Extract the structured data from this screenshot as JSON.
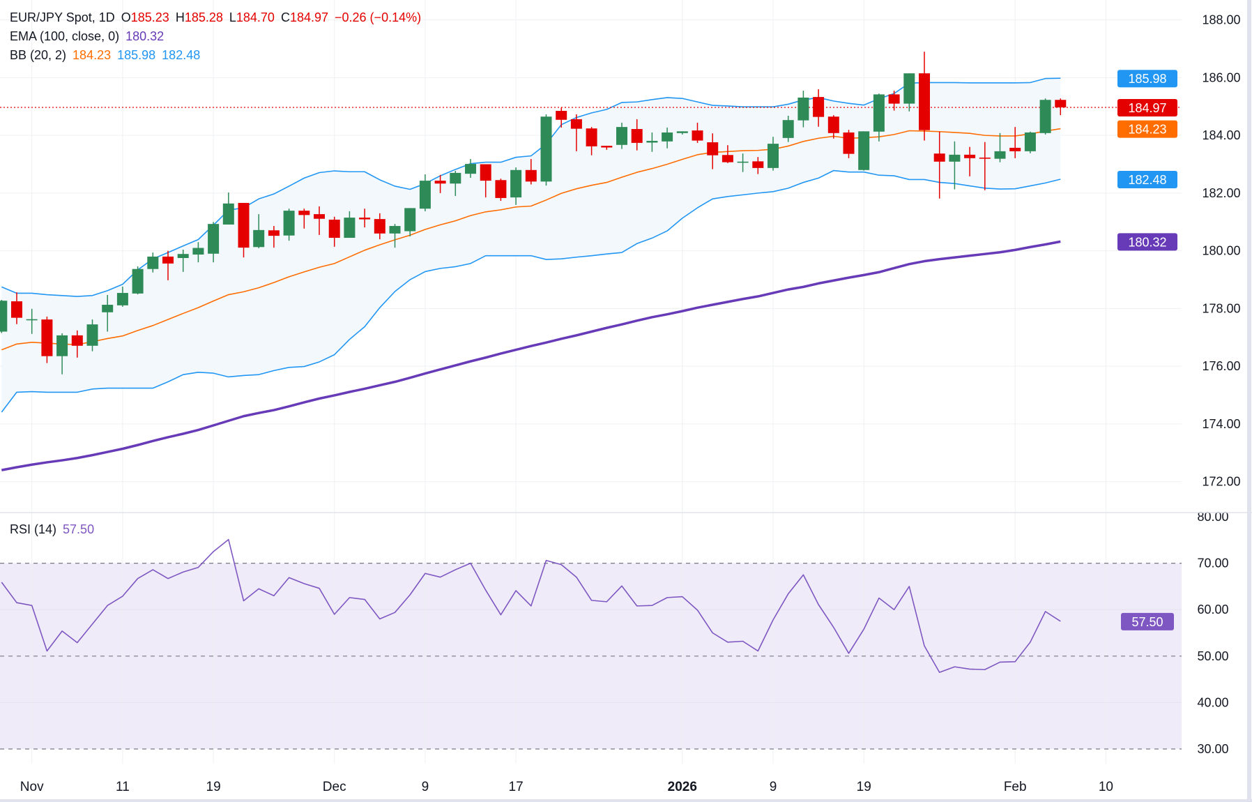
{
  "legend": {
    "symbol": "EUR/JPY Spot, 1D",
    "o_label": "O",
    "o": "185.23",
    "h_label": "H",
    "h": "185.28",
    "l_label": "L",
    "l": "184.70",
    "c_label": "C",
    "c": "184.97",
    "change": "−0.26 (−0.14%)",
    "ema_label": "EMA (100, close, 0)",
    "ema_value": "180.32",
    "bb_label": "BB (20, 2)",
    "bb_basis": "184.23",
    "bb_upper": "185.98",
    "bb_lower": "182.48",
    "rsi_label": "RSI (14)",
    "rsi_value": "57.50"
  },
  "colors": {
    "up": "#2e8b57",
    "down": "#e50000",
    "bb_upper_lower": "#2196f3",
    "bb_basis": "#ff6d00",
    "bb_fill": "#f3f8fd",
    "ema": "#673ab7",
    "rsi": "#7e57c2",
    "rsi_band": "#efebf8",
    "last_price": "#e50000"
  },
  "chart_data": [
    {
      "type": "candlestick",
      "title": "EUR/JPY Spot, 1D",
      "ylim": [
        171.5,
        188.7
      ],
      "y_tick_labels": [
        "188.00",
        "186.00",
        "184.00",
        "182.00",
        "180.00",
        "178.00",
        "176.00",
        "174.00",
        "172.00"
      ],
      "x_ticks": [
        {
          "label": "Nov",
          "candle": 2
        },
        {
          "label": "11",
          "candle": 8
        },
        {
          "label": "19",
          "candle": 14
        },
        {
          "label": "Dec",
          "candle": 22
        },
        {
          "label": "9",
          "candle": 28
        },
        {
          "label": "17",
          "candle": 34
        },
        {
          "label": "2026",
          "candle": 45,
          "bold": true
        },
        {
          "label": "9",
          "candle": 51
        },
        {
          "label": "19",
          "candle": 57
        },
        {
          "label": "Feb",
          "candle": 67
        },
        {
          "label": "10",
          "candle": 73
        }
      ],
      "grid": true,
      "candles_ohlc": [
        [
          177.2,
          178.3,
          177.15,
          178.27
        ],
        [
          178.25,
          178.56,
          177.46,
          177.68
        ],
        [
          177.62,
          177.99,
          177.12,
          177.63
        ],
        [
          177.62,
          177.72,
          176.11,
          176.35
        ],
        [
          176.35,
          177.14,
          175.72,
          177.07
        ],
        [
          177.07,
          177.24,
          176.3,
          176.71
        ],
        [
          176.71,
          177.62,
          176.52,
          177.45
        ],
        [
          177.87,
          178.47,
          177.2,
          178.13
        ],
        [
          178.11,
          178.76,
          178.06,
          178.54
        ],
        [
          178.52,
          179.46,
          178.49,
          179.37
        ],
        [
          179.37,
          179.94,
          179.25,
          179.8
        ],
        [
          179.8,
          180.0,
          178.98,
          179.56
        ],
        [
          179.75,
          180.04,
          179.27,
          179.89
        ],
        [
          179.87,
          180.3,
          179.6,
          180.1
        ],
        [
          179.9,
          181.0,
          179.6,
          180.93
        ],
        [
          180.91,
          182.02,
          180.91,
          181.64
        ],
        [
          181.66,
          181.66,
          179.77,
          180.11
        ],
        [
          180.13,
          181.27,
          180.09,
          180.72
        ],
        [
          180.71,
          180.86,
          180.11,
          180.52
        ],
        [
          180.53,
          181.46,
          180.35,
          181.39
        ],
        [
          181.39,
          181.46,
          180.77,
          181.24
        ],
        [
          181.27,
          181.54,
          180.55,
          181.11
        ],
        [
          181.08,
          181.18,
          180.14,
          180.45
        ],
        [
          180.45,
          181.37,
          180.45,
          181.15
        ],
        [
          181.15,
          181.46,
          180.81,
          181.09
        ],
        [
          181.1,
          181.3,
          180.4,
          180.6
        ],
        [
          180.6,
          180.93,
          180.11,
          180.86
        ],
        [
          180.68,
          181.48,
          180.5,
          181.48
        ],
        [
          181.46,
          182.65,
          181.37,
          182.43
        ],
        [
          182.43,
          182.63,
          182.0,
          182.33
        ],
        [
          182.33,
          182.77,
          181.9,
          182.7
        ],
        [
          182.67,
          183.18,
          182.53,
          183.01
        ],
        [
          183.0,
          183.0,
          181.85,
          182.43
        ],
        [
          182.45,
          182.5,
          181.73,
          181.83
        ],
        [
          181.85,
          182.89,
          181.59,
          182.8
        ],
        [
          182.8,
          183.18,
          182.3,
          182.4
        ],
        [
          182.4,
          184.73,
          182.26,
          184.65
        ],
        [
          184.85,
          184.96,
          184.27,
          184.54
        ],
        [
          184.56,
          184.73,
          183.45,
          184.23
        ],
        [
          184.24,
          184.29,
          183.31,
          183.62
        ],
        [
          183.64,
          183.64,
          183.5,
          183.58
        ],
        [
          183.67,
          184.44,
          183.53,
          184.29
        ],
        [
          184.22,
          184.56,
          183.48,
          183.74
        ],
        [
          183.75,
          184.1,
          183.43,
          183.81
        ],
        [
          183.79,
          184.27,
          183.55,
          184.1
        ],
        [
          184.08,
          184.14,
          184.03,
          184.14
        ],
        [
          184.17,
          184.44,
          183.74,
          183.82
        ],
        [
          183.76,
          184.07,
          182.83,
          183.31
        ],
        [
          183.32,
          183.66,
          183.04,
          183.07
        ],
        [
          183.07,
          183.37,
          182.73,
          183.09
        ],
        [
          183.1,
          183.25,
          182.66,
          182.87
        ],
        [
          182.87,
          183.95,
          182.78,
          183.71
        ],
        [
          183.91,
          184.68,
          183.77,
          184.53
        ],
        [
          184.52,
          185.55,
          184.28,
          185.31
        ],
        [
          185.33,
          185.6,
          184.3,
          184.64
        ],
        [
          184.65,
          184.7,
          183.89,
          184.08
        ],
        [
          184.1,
          184.19,
          183.21,
          183.36
        ],
        [
          182.8,
          184.14,
          182.78,
          184.14
        ],
        [
          184.13,
          185.45,
          183.79,
          185.42
        ],
        [
          185.42,
          185.55,
          184.86,
          185.1
        ],
        [
          185.1,
          186.15,
          184.83,
          186.15
        ],
        [
          186.15,
          186.9,
          183.82,
          184.18
        ],
        [
          183.37,
          184.13,
          181.81,
          183.09
        ],
        [
          183.09,
          183.79,
          182.13,
          183.33
        ],
        [
          183.33,
          183.6,
          182.58,
          183.21
        ],
        [
          183.23,
          183.77,
          182.1,
          183.22
        ],
        [
          183.19,
          184.08,
          183.07,
          183.45
        ],
        [
          183.57,
          184.29,
          183.21,
          183.45
        ],
        [
          183.45,
          184.13,
          183.38,
          184.1
        ],
        [
          184.08,
          185.28,
          184.03,
          185.23
        ],
        [
          185.23,
          185.28,
          184.7,
          184.97
        ]
      ],
      "bb_upper": [
        178.75,
        178.53,
        178.53,
        178.48,
        178.45,
        178.42,
        178.45,
        178.62,
        178.84,
        179.34,
        179.72,
        179.94,
        180.17,
        180.39,
        180.89,
        181.41,
        181.49,
        181.8,
        181.97,
        182.24,
        182.52,
        182.71,
        182.77,
        182.74,
        182.74,
        182.46,
        182.24,
        182.13,
        182.33,
        182.6,
        182.82,
        183.02,
        183.07,
        183.07,
        183.24,
        183.29,
        183.7,
        184.37,
        184.62,
        184.78,
        184.9,
        185.14,
        185.16,
        185.24,
        185.31,
        185.28,
        185.16,
        185.04,
        185.02,
        184.99,
        184.99,
        184.99,
        185.08,
        185.23,
        185.31,
        185.19,
        185.11,
        185.05,
        185.27,
        185.45,
        185.81,
        185.83,
        185.83,
        185.83,
        185.82,
        185.82,
        185.82,
        185.82,
        185.83,
        185.97,
        185.98
      ],
      "bb_basis": [
        176.57,
        176.77,
        176.83,
        176.8,
        176.77,
        176.75,
        176.85,
        176.96,
        177.05,
        177.24,
        177.41,
        177.62,
        177.83,
        178.03,
        178.26,
        178.48,
        178.58,
        178.72,
        178.9,
        179.1,
        179.27,
        179.43,
        179.56,
        179.79,
        180.02,
        180.21,
        180.38,
        180.54,
        180.74,
        180.9,
        181.04,
        181.22,
        181.35,
        181.42,
        181.52,
        181.55,
        181.76,
        181.99,
        182.15,
        182.27,
        182.37,
        182.55,
        182.72,
        182.85,
        183.0,
        183.17,
        183.33,
        183.41,
        183.44,
        183.47,
        183.48,
        183.52,
        183.63,
        183.79,
        183.9,
        183.97,
        183.9,
        183.92,
        183.95,
        184.03,
        184.16,
        184.15,
        184.13,
        184.1,
        184.07,
        184.0,
        183.98,
        183.98,
        184.05,
        184.15,
        184.23
      ],
      "bb_lower": [
        174.41,
        175.1,
        175.12,
        175.1,
        175.1,
        175.1,
        175.21,
        175.24,
        175.24,
        175.24,
        175.24,
        175.46,
        175.71,
        175.79,
        175.76,
        175.63,
        175.68,
        175.71,
        175.85,
        175.96,
        175.99,
        176.15,
        176.4,
        176.93,
        177.37,
        178.03,
        178.59,
        179.0,
        179.28,
        179.39,
        179.45,
        179.56,
        179.83,
        179.83,
        179.83,
        179.83,
        179.7,
        179.72,
        179.78,
        179.83,
        179.89,
        179.94,
        180.25,
        180.44,
        180.69,
        181.13,
        181.49,
        181.8,
        181.88,
        181.94,
        182.0,
        182.05,
        182.17,
        182.37,
        182.52,
        182.78,
        182.73,
        182.73,
        182.62,
        182.6,
        182.47,
        182.47,
        182.37,
        182.33,
        182.25,
        182.17,
        182.14,
        182.15,
        182.25,
        182.35,
        182.48
      ],
      "ema_100": [
        172.4,
        172.5,
        172.59,
        172.67,
        172.74,
        172.82,
        172.92,
        173.03,
        173.14,
        173.27,
        173.41,
        173.54,
        173.66,
        173.79,
        173.95,
        174.11,
        174.27,
        174.38,
        174.48,
        174.61,
        174.75,
        174.88,
        174.99,
        175.11,
        175.22,
        175.34,
        175.46,
        175.6,
        175.75,
        175.89,
        176.03,
        176.17,
        176.3,
        176.44,
        176.57,
        176.7,
        176.82,
        176.95,
        177.07,
        177.2,
        177.33,
        177.45,
        177.58,
        177.7,
        177.8,
        177.91,
        178.03,
        178.13,
        178.23,
        178.33,
        178.42,
        178.54,
        178.66,
        178.75,
        178.87,
        178.97,
        179.07,
        179.16,
        179.26,
        179.4,
        179.54,
        179.64,
        179.71,
        179.77,
        179.83,
        179.89,
        179.95,
        180.03,
        180.13,
        180.22,
        180.32
      ],
      "last_price": 184.97,
      "price_tags": [
        {
          "label": "185.98",
          "color": "#2196f3"
        },
        {
          "label": "184.97",
          "color": "#e50000"
        },
        {
          "label": "184.23",
          "color": "#ff6d00"
        },
        {
          "label": "182.48",
          "color": "#2196f3"
        },
        {
          "label": "180.32",
          "color": "#673ab7"
        }
      ]
    },
    {
      "type": "line",
      "title": "RSI (14)",
      "ylim": [
        30,
        80
      ],
      "y_tick_labels": [
        "80.00",
        "70.00",
        "60.00",
        "50.00",
        "40.00",
        "30.00"
      ],
      "band": [
        30,
        70
      ],
      "dashed_levels": [
        70,
        50,
        30
      ],
      "values": [
        65.9,
        61.5,
        60.9,
        51.1,
        55.4,
        52.9,
        56.9,
        60.9,
        62.9,
        66.7,
        68.6,
        66.7,
        68.1,
        69.1,
        72.5,
        75.1,
        61.9,
        64.5,
        63.0,
        66.9,
        65.6,
        64.6,
        59.0,
        62.6,
        62.2,
        58.0,
        59.4,
        63.2,
        67.8,
        67.0,
        68.6,
        70.0,
        64.2,
        58.9,
        64.1,
        60.8,
        70.6,
        69.7,
        67.0,
        62.0,
        61.7,
        65.1,
        60.8,
        60.9,
        62.6,
        62.8,
        59.9,
        55.0,
        53.0,
        53.2,
        51.1,
        57.8,
        63.4,
        67.5,
        61.1,
        56.2,
        50.6,
        55.8,
        62.5,
        60.0,
        65.0,
        52.2,
        46.5,
        47.7,
        47.2,
        47.1,
        48.7,
        48.8,
        53.0,
        59.6,
        57.5
      ],
      "price_tag": {
        "label": "57.50",
        "color": "#7e57c2"
      }
    }
  ]
}
